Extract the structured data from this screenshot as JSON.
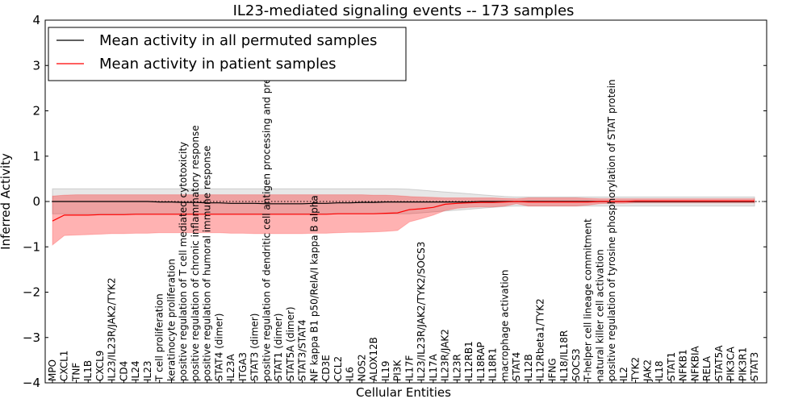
{
  "chart_data": {
    "type": "line",
    "title": "IL23-mediated signaling events -- 173 samples",
    "xlabel": "Cellular Entities",
    "ylabel": "Inferred Activity",
    "ylim": [
      -4,
      4
    ],
    "yticks": [
      -4,
      -3,
      -2,
      -1,
      0,
      1,
      2,
      3,
      4
    ],
    "grid": false,
    "legend_position": "top-left",
    "categories": [
      "MPO",
      "CXCL1",
      "TNF",
      "IL1B",
      "CXCL9",
      "IL23/IL23R/JAK2/TYK2",
      "CD4",
      "IL24",
      "IL23",
      "T cell proliferation",
      "keratinocyte proliferation",
      "positive regulation of T cell mediated cytotoxicity",
      "positive regulation of chronic inflammatory response",
      "positive regulation of humoral immune response",
      "STAT4 (dimer)",
      "IL23A",
      "ITGA3",
      "STAT3 (dimer)",
      "positive regulation of dendritic cell antigen processing and presentation",
      "STAT1 (dimer)",
      "STAT5A (dimer)",
      "STAT3/STAT4",
      "NF kappa B1 p50/RelA/I kappa B alpha",
      "CD3E",
      "CCL2",
      "IL6",
      "NOS2",
      "ALOX12B",
      "IL19",
      "PI3K",
      "IL17F",
      "IL23/IL23R/JAK2/TYK2/SOCS3",
      "IL17A",
      "IL23R/JAK2",
      "IL23R",
      "IL12RB1",
      "IL18RAP",
      "IL18R1",
      "macrophage activation",
      "STAT4",
      "IL12B",
      "IL12Rbeta1/TYK2",
      "IFNG",
      "IL18/IL18R",
      "SOCS3",
      "T-helper cell lineage commitment",
      "natural killer cell activation",
      "positive regulation of tyrosine phosphorylation of STAT protein",
      "IL2",
      "TYK2",
      "JAK2",
      "IL18",
      "STAT1",
      "NFKB1",
      "NFKBIA",
      "RELA",
      "STAT5A",
      "PIK3CA",
      "PIK3R1",
      "STAT3"
    ],
    "series": [
      {
        "name": "Mean activity in all permuted samples",
        "color": "#000000",
        "values": [
          0,
          0,
          0,
          0,
          0,
          0,
          0,
          0,
          0,
          -0.01,
          -0.01,
          -0.02,
          -0.02,
          -0.03,
          -0.03,
          -0.04,
          -0.04,
          -0.04,
          -0.05,
          -0.05,
          -0.05,
          -0.05,
          -0.04,
          -0.04,
          -0.03,
          -0.03,
          -0.02,
          -0.02,
          -0.01,
          -0.01,
          -0.01,
          -0.01,
          -0.01,
          -0.01,
          -0.01,
          -0.01,
          0,
          0,
          0,
          0,
          0,
          0,
          0,
          0,
          0,
          0,
          0,
          0,
          0,
          0,
          0,
          0,
          0,
          0,
          0,
          0,
          0,
          0,
          0,
          0
        ],
        "band_lower": [
          -0.27,
          -0.27,
          -0.27,
          -0.27,
          -0.27,
          -0.27,
          -0.27,
          -0.27,
          -0.27,
          -0.27,
          -0.27,
          -0.27,
          -0.27,
          -0.27,
          -0.27,
          -0.27,
          -0.27,
          -0.27,
          -0.27,
          -0.27,
          -0.27,
          -0.27,
          -0.27,
          -0.27,
          -0.27,
          -0.27,
          -0.27,
          -0.27,
          -0.27,
          -0.27,
          -0.27,
          -0.25,
          -0.23,
          -0.21,
          -0.19,
          -0.17,
          -0.15,
          -0.13,
          -0.11,
          -0.1,
          -0.1,
          -0.1,
          -0.1,
          -0.1,
          -0.1,
          -0.1,
          -0.1,
          -0.1,
          -0.1,
          -0.1,
          -0.1,
          -0.1,
          -0.1,
          -0.1,
          -0.1,
          -0.1,
          -0.1,
          -0.1,
          -0.1,
          -0.1
        ],
        "band_upper": [
          0.28,
          0.28,
          0.28,
          0.28,
          0.28,
          0.28,
          0.28,
          0.28,
          0.28,
          0.28,
          0.28,
          0.28,
          0.28,
          0.28,
          0.28,
          0.28,
          0.28,
          0.28,
          0.28,
          0.28,
          0.28,
          0.28,
          0.28,
          0.28,
          0.28,
          0.28,
          0.28,
          0.28,
          0.28,
          0.28,
          0.27,
          0.25,
          0.23,
          0.21,
          0.19,
          0.17,
          0.15,
          0.13,
          0.11,
          0.1,
          0.1,
          0.1,
          0.1,
          0.1,
          0.1,
          0.1,
          0.1,
          0.1,
          0.1,
          0.1,
          0.1,
          0.1,
          0.1,
          0.1,
          0.1,
          0.1,
          0.1,
          0.1,
          0.1,
          0.1
        ]
      },
      {
        "name": "Mean activity in patient samples",
        "color": "#ff0000",
        "values": [
          -0.43,
          -0.3,
          -0.3,
          -0.3,
          -0.29,
          -0.29,
          -0.29,
          -0.28,
          -0.28,
          -0.28,
          -0.28,
          -0.28,
          -0.28,
          -0.28,
          -0.28,
          -0.28,
          -0.28,
          -0.28,
          -0.28,
          -0.28,
          -0.28,
          -0.28,
          -0.28,
          -0.28,
          -0.27,
          -0.27,
          -0.27,
          -0.27,
          -0.26,
          -0.25,
          -0.18,
          -0.16,
          -0.13,
          -0.06,
          -0.04,
          -0.03,
          -0.02,
          -0.02,
          -0.01,
          0,
          -0.01,
          -0.01,
          -0.01,
          -0.01,
          -0.01,
          -0.01,
          0,
          0,
          0,
          0.01,
          0.01,
          0.01,
          0.01,
          0.01,
          0.01,
          0.01,
          0.01,
          0.01,
          0.01,
          0.01
        ],
        "band_lower": [
          -0.96,
          -0.75,
          -0.74,
          -0.73,
          -0.72,
          -0.71,
          -0.71,
          -0.7,
          -0.7,
          -0.69,
          -0.69,
          -0.69,
          -0.69,
          -0.69,
          -0.69,
          -0.7,
          -0.7,
          -0.71,
          -0.71,
          -0.71,
          -0.71,
          -0.71,
          -0.7,
          -0.7,
          -0.69,
          -0.68,
          -0.68,
          -0.67,
          -0.66,
          -0.64,
          -0.45,
          -0.38,
          -0.3,
          -0.2,
          -0.15,
          -0.13,
          -0.12,
          -0.12,
          -0.1,
          -0.05,
          -0.1,
          -0.1,
          -0.1,
          -0.1,
          -0.1,
          -0.08,
          -0.05,
          -0.04,
          -0.04,
          -0.03,
          -0.03,
          -0.03,
          -0.03,
          -0.03,
          -0.03,
          -0.03,
          -0.03,
          -0.03,
          -0.03,
          -0.03
        ],
        "band_upper": [
          0.12,
          0.14,
          0.15,
          0.15,
          0.15,
          0.15,
          0.15,
          0.15,
          0.15,
          0.15,
          0.15,
          0.15,
          0.15,
          0.15,
          0.15,
          0.15,
          0.15,
          0.15,
          0.15,
          0.15,
          0.15,
          0.15,
          0.15,
          0.15,
          0.15,
          0.15,
          0.15,
          0.14,
          0.14,
          0.13,
          0.11,
          0.1,
          0.09,
          0.08,
          0.08,
          0.08,
          0.08,
          0.08,
          0.07,
          0.06,
          0.08,
          0.08,
          0.08,
          0.08,
          0.08,
          0.07,
          0.06,
          0.06,
          0.06,
          0.06,
          0.06,
          0.06,
          0.06,
          0.06,
          0.06,
          0.06,
          0.06,
          0.06,
          0.06,
          0.06
        ]
      }
    ]
  }
}
